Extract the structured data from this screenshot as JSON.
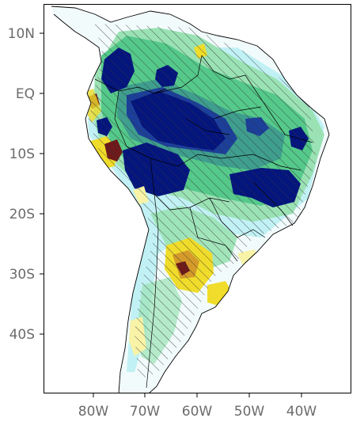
{
  "axes": {
    "lat_labels": [
      "10N",
      "EQ",
      "10S",
      "20S",
      "30S",
      "40S"
    ],
    "lon_labels": [
      "80W",
      "70W",
      "60W",
      "50W",
      "40W"
    ]
  },
  "palette": {
    "frame": "#000000",
    "land_base": "#f2fbfc",
    "light_cyan": "#b9eef2",
    "green_light": "#9ae2b4",
    "green": "#55c98a",
    "teal": "#3f9e8e",
    "blue": "#1c3f9a",
    "navy": "#04157e",
    "yellow_light": "#f8f3a6",
    "yellow": "#f0dc2a",
    "orange": "#d49a2a",
    "brown": "#6e1a1a",
    "hatch": "#333333",
    "border": "#000000"
  }
}
